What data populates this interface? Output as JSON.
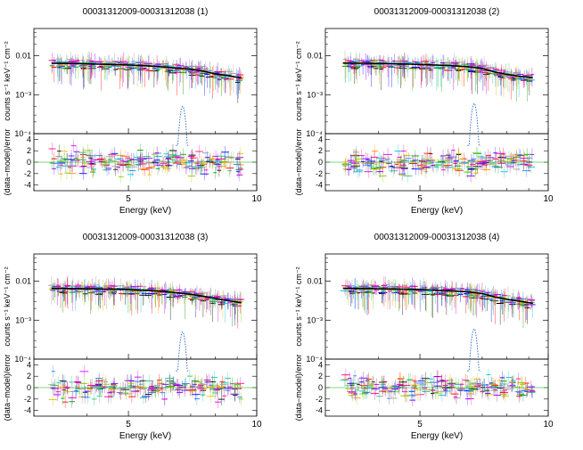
{
  "chart_data": [
    {
      "type": "scatter",
      "title": "00031312009-00031312038 (1)",
      "xlabel": "Energy (keV)",
      "ylabel_top": "counts s⁻¹ keV⁻¹ cm⁻²",
      "ylabel_bottom": "(data−model)/error",
      "xlim": [
        3.0,
        10.0
      ],
      "x_ticks": [
        {
          "value": 5,
          "label": "5"
        },
        {
          "value": 10,
          "label": "10"
        }
      ],
      "spectrum_ylim": [
        0.0001,
        0.05
      ],
      "spectrum_ticks": [
        {
          "value": 0.01,
          "label": "0.01"
        },
        {
          "value": 0.001,
          "label": "10⁻³"
        },
        {
          "value": 0.0001,
          "label": "10⁻⁴"
        }
      ],
      "residual_ylim": [
        -5,
        5
      ],
      "residual_ticks": [
        4,
        2,
        0,
        -2,
        -4
      ],
      "model": {
        "e": [
          3.0,
          4.0,
          5.0,
          6.0,
          6.5,
          7.0,
          7.5,
          8.0,
          8.5,
          9.0,
          9.5
        ],
        "flux": [
          0.0065,
          0.0062,
          0.0058,
          0.0052,
          0.0048,
          0.0045,
          0.004,
          0.0034,
          0.0031,
          0.0028,
          0.0026
        ]
      },
      "line_component": {
        "center_kev": 6.7,
        "peak_flux": 0.0005,
        "width_kev": 0.08
      },
      "series_colors": [
        "#000000",
        "#ff0000",
        "#00a000",
        "#0000ff",
        "#00c8c8",
        "#e000e0",
        "#d8c000",
        "#ff9900",
        "#80d000",
        "#30c080",
        "#3080ff",
        "#8000ff",
        "#ff0090",
        "#a0a0a0"
      ]
    },
    {
      "type": "scatter",
      "title": "00031312009-00031312038 (2)",
      "xlabel": "Energy (keV)",
      "ylabel_top": "counts s⁻¹ keV⁻¹ cm⁻²",
      "ylabel_bottom": "(data−model)/error",
      "xlim": [
        3.0,
        10.0
      ],
      "x_ticks": [
        {
          "value": 5,
          "label": "5"
        },
        {
          "value": 10,
          "label": "10"
        }
      ],
      "spectrum_ylim": [
        0.0001,
        0.05
      ],
      "spectrum_ticks": [
        {
          "value": 0.01,
          "label": "0.01"
        },
        {
          "value": 0.001,
          "label": "10⁻³"
        },
        {
          "value": 0.0001,
          "label": "10⁻⁴"
        }
      ],
      "residual_ylim": [
        -5,
        5
      ],
      "residual_ticks": [
        4,
        2,
        0,
        -2,
        -4
      ],
      "model": {
        "e": [
          3.0,
          4.0,
          5.0,
          6.0,
          6.5,
          7.0,
          7.5,
          8.0,
          8.5,
          9.0,
          9.5
        ],
        "flux": [
          0.0066,
          0.0063,
          0.006,
          0.0055,
          0.0052,
          0.0047,
          0.0038,
          0.0033,
          0.003,
          0.0028,
          0.0026
        ]
      },
      "line_component": {
        "center_kev": 6.7,
        "peak_flux": 0.0006,
        "width_kev": 0.08
      },
      "series_colors": [
        "#000000",
        "#ff0000",
        "#00a000",
        "#0000ff",
        "#00c8c8",
        "#e000e0",
        "#d8c000",
        "#ff9900",
        "#80d000",
        "#30c080",
        "#3080ff",
        "#8000ff",
        "#ff0090",
        "#a0a0a0"
      ]
    },
    {
      "type": "scatter",
      "title": "00031312009-00031312038 (3)",
      "xlabel": "Energy (keV)",
      "ylabel_top": "counts s⁻¹ keV⁻¹ cm⁻²",
      "ylabel_bottom": "(data−model)/error",
      "xlim": [
        3.0,
        10.0
      ],
      "x_ticks": [
        {
          "value": 5,
          "label": "5"
        },
        {
          "value": 10,
          "label": "10"
        }
      ],
      "spectrum_ylim": [
        0.0001,
        0.05
      ],
      "spectrum_ticks": [
        {
          "value": 0.01,
          "label": "0.01"
        },
        {
          "value": 0.001,
          "label": "10⁻³"
        },
        {
          "value": 0.0001,
          "label": "10⁻⁴"
        }
      ],
      "residual_ylim": [
        -5,
        5
      ],
      "residual_ticks": [
        4,
        2,
        0,
        -2,
        -4
      ],
      "model": {
        "e": [
          3.0,
          4.0,
          5.0,
          6.0,
          6.5,
          7.0,
          7.5,
          8.0,
          8.5,
          9.0,
          9.5
        ],
        "flux": [
          0.0066,
          0.0064,
          0.0061,
          0.0055,
          0.005,
          0.0046,
          0.0041,
          0.0036,
          0.0032,
          0.0029,
          0.0027
        ]
      },
      "line_component": {
        "center_kev": 6.7,
        "peak_flux": 0.0005,
        "width_kev": 0.08
      },
      "series_colors": [
        "#000000",
        "#ff0000",
        "#00a000",
        "#0000ff",
        "#00c8c8",
        "#e000e0",
        "#d8c000",
        "#ff9900",
        "#80d000",
        "#30c080",
        "#3080ff",
        "#8000ff",
        "#ff0090",
        "#a0a0a0"
      ]
    },
    {
      "type": "scatter",
      "title": "00031312009-00031312038 (4)",
      "xlabel": "Energy (keV)",
      "ylabel_top": "counts s⁻¹ keV⁻¹ cm⁻²",
      "ylabel_bottom": "(data−model)/error",
      "xlim": [
        3.0,
        10.0
      ],
      "x_ticks": [
        {
          "value": 5,
          "label": "5"
        },
        {
          "value": 10,
          "label": "10"
        }
      ],
      "spectrum_ylim": [
        0.0001,
        0.05
      ],
      "spectrum_ticks": [
        {
          "value": 0.01,
          "label": "0.01"
        },
        {
          "value": 0.001,
          "label": "10⁻³"
        },
        {
          "value": 0.0001,
          "label": "10⁻⁴"
        }
      ],
      "residual_ylim": [
        -5,
        5
      ],
      "residual_ticks": [
        4,
        2,
        0,
        -2,
        -4
      ],
      "model": {
        "e": [
          3.0,
          4.0,
          5.0,
          6.0,
          6.5,
          7.0,
          7.5,
          8.0,
          8.5,
          9.0,
          9.5
        ],
        "flux": [
          0.0066,
          0.0064,
          0.0061,
          0.0056,
          0.0053,
          0.0048,
          0.0039,
          0.0034,
          0.0031,
          0.0028,
          0.0026
        ]
      },
      "line_component": {
        "center_kev": 6.7,
        "peak_flux": 0.0006,
        "width_kev": 0.08
      },
      "series_colors": [
        "#000000",
        "#ff0000",
        "#00a000",
        "#0000ff",
        "#00c8c8",
        "#e000e0",
        "#d8c000",
        "#ff9900",
        "#80d000",
        "#30c080",
        "#3080ff",
        "#8000ff",
        "#ff0090",
        "#a0a0a0"
      ]
    }
  ]
}
